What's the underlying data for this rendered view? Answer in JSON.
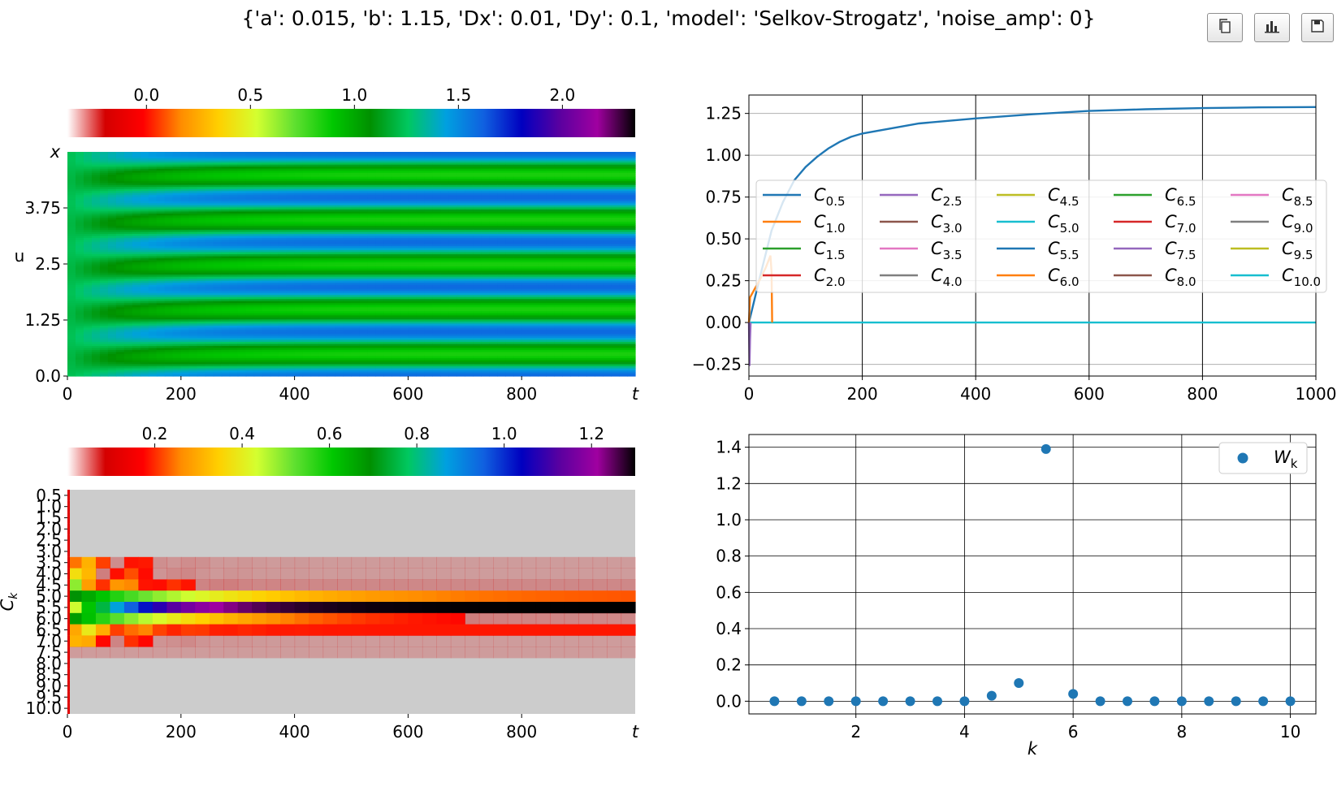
{
  "title": "{'a': 0.015, 'b': 1.15, 'Dx': 0.01, 'Dy': 0.1, 'model': 'Selkov-Strogatz', 'noise_amp': 0}",
  "toolbar": {
    "buttons": [
      {
        "icon": "copy-icon"
      },
      {
        "icon": "bar-chart-icon"
      },
      {
        "icon": "save-icon"
      }
    ]
  },
  "colormap_stops": [
    "#ffffff",
    "#d40000",
    "#ff0000",
    "#ff8c00",
    "#ffd000",
    "#d4ff30",
    "#60e030",
    "#00c800",
    "#009000",
    "#00c860",
    "#00a0e0",
    "#1060e0",
    "#0000c0",
    "#5a00a0",
    "#a000a0",
    "#000000"
  ],
  "chart_data": [
    {
      "type": "heatmap",
      "id": "u-field",
      "xlabel": "t",
      "ylabel": "u",
      "ylabel_top": "x",
      "xticks": [
        "0",
        "200",
        "400",
        "600",
        "800"
      ],
      "yticks": [
        "0.0",
        "1.25",
        "2.5",
        "3.75"
      ],
      "xlim": [
        0,
        1000
      ],
      "ylim": [
        0,
        5
      ],
      "colorbar": {
        "ticks": [
          "0.0",
          "0.5",
          "1.0",
          "1.5",
          "2.0"
        ],
        "tick_values": [
          0,
          0.5,
          1,
          1.5,
          2
        ],
        "range": [
          -0.38,
          2.35
        ]
      },
      "stripes": {
        "count": 5,
        "low_value": 1.65,
        "high_value": 0.82,
        "settle_time": 150
      }
    },
    {
      "type": "heatmap",
      "id": "c-spectrum",
      "xlabel": "t",
      "ylabel": "C_k",
      "xticks": [
        "0",
        "200",
        "400",
        "600",
        "800"
      ],
      "yticks": [
        "0.5",
        "1.0",
        "1.5",
        "2.0",
        "2.5",
        "3.0",
        "3.5",
        "4.0",
        "4.5",
        "5.0",
        "5.5",
        "6.0",
        "6.5",
        "7.0",
        "7.5",
        "8.0",
        "8.5",
        "9.0",
        "9.5",
        "10.0"
      ],
      "xlim": [
        0,
        1000
      ],
      "colorbar": {
        "ticks": [
          "0.2",
          "0.4",
          "0.6",
          "0.8",
          "1.0",
          "1.2"
        ],
        "tick_values": [
          0.2,
          0.4,
          0.6,
          0.8,
          1.0,
          1.2
        ],
        "range": [
          0,
          1.3
        ]
      },
      "rows_k": [
        0.5,
        1.0,
        1.5,
        2.0,
        2.5,
        3.0,
        3.5,
        4.0,
        4.5,
        5.0,
        5.5,
        6.0,
        6.5,
        7.0,
        7.5,
        8.0,
        8.5,
        9.0,
        9.5,
        10.0
      ],
      "row_final_values": [
        0.02,
        0,
        0.02,
        0,
        0.02,
        0.02,
        0.03,
        0.03,
        0.06,
        0.12,
        1.3,
        0.05,
        0.09,
        0.03,
        0.03,
        0.01,
        0,
        0,
        0,
        0
      ]
    },
    {
      "type": "line",
      "id": "c-timeseries",
      "xticks": [
        "0",
        "200",
        "400",
        "600",
        "800",
        "1000"
      ],
      "yticks": [
        "−0.25",
        "0.00",
        "0.25",
        "0.50",
        "0.75",
        "1.00",
        "1.25"
      ],
      "xlim": [
        0,
        1000
      ],
      "ylim": [
        -0.32,
        1.36
      ],
      "grid": true,
      "legend_position": "center",
      "legend_columns": 5,
      "series": [
        {
          "name": "C0.5",
          "base": "C",
          "sub": "0.5",
          "color": "#1f77b4"
        },
        {
          "name": "C1.0",
          "base": "C",
          "sub": "1.0",
          "color": "#ff7f0e"
        },
        {
          "name": "C1.5",
          "base": "C",
          "sub": "1.5",
          "color": "#2ca02c"
        },
        {
          "name": "C2.0",
          "base": "C",
          "sub": "2.0",
          "color": "#d62728"
        },
        {
          "name": "C2.5",
          "base": "C",
          "sub": "2.5",
          "color": "#9467bd"
        },
        {
          "name": "C3.0",
          "base": "C",
          "sub": "3.0",
          "color": "#8c564b"
        },
        {
          "name": "C3.5",
          "base": "C",
          "sub": "3.5",
          "color": "#e377c2"
        },
        {
          "name": "C4.0",
          "base": "C",
          "sub": "4.0",
          "color": "#7f7f7f"
        },
        {
          "name": "C4.5",
          "base": "C",
          "sub": "4.5",
          "color": "#bcbd22"
        },
        {
          "name": "C5.0",
          "base": "C",
          "sub": "5.0",
          "color": "#17becf"
        },
        {
          "name": "C5.5",
          "base": "C",
          "sub": "5.5",
          "color": "#1f77b4",
          "x": [
            0,
            20,
            40,
            60,
            80,
            100,
            120,
            140,
            160,
            180,
            200,
            250,
            300,
            400,
            500,
            600,
            700,
            800,
            900,
            1000
          ],
          "y": [
            0,
            0.28,
            0.55,
            0.72,
            0.85,
            0.93,
            0.99,
            1.04,
            1.08,
            1.11,
            1.13,
            1.16,
            1.19,
            1.22,
            1.245,
            1.265,
            1.275,
            1.282,
            1.286,
            1.288
          ]
        },
        {
          "name": "C6.0",
          "base": "C",
          "sub": "6.0",
          "color": "#ff7f0e",
          "x": [
            0,
            2,
            10,
            20,
            30,
            38,
            40,
            41
          ],
          "y": [
            0,
            0.15,
            0.2,
            0.26,
            0.33,
            0.4,
            0.3,
            0.0
          ]
        },
        {
          "name": "C6.5",
          "base": "C",
          "sub": "6.5",
          "color": "#2ca02c"
        },
        {
          "name": "C7.0",
          "base": "C",
          "sub": "7.0",
          "color": "#d62728"
        },
        {
          "name": "C7.5",
          "base": "C",
          "sub": "7.5",
          "color": "#9467bd",
          "x": [
            0,
            1,
            2,
            3
          ],
          "y": [
            0,
            -0.26,
            -0.1,
            0
          ]
        },
        {
          "name": "C8.0",
          "base": "C",
          "sub": "8.0",
          "color": "#8c564b"
        },
        {
          "name": "C8.5",
          "base": "C",
          "sub": "8.5",
          "color": "#e377c2"
        },
        {
          "name": "C9.0",
          "base": "C",
          "sub": "9.0",
          "color": "#7f7f7f"
        },
        {
          "name": "C9.5",
          "base": "C",
          "sub": "9.5",
          "color": "#bcbd22"
        },
        {
          "name": "C10.0",
          "base": "C",
          "sub": "10.0",
          "color": "#17becf"
        }
      ],
      "zero_line_color": "#17becf"
    },
    {
      "type": "scatter",
      "id": "wk",
      "xlabel": "k",
      "xticks": [
        "2",
        "4",
        "6",
        "8",
        "10"
      ],
      "xtick_values": [
        2,
        4,
        6,
        8,
        10
      ],
      "yticks": [
        "0.0",
        "0.2",
        "0.4",
        "0.6",
        "0.8",
        "1.0",
        "1.2",
        "1.4"
      ],
      "ytick_values": [
        0,
        0.2,
        0.4,
        0.6,
        0.8,
        1.0,
        1.2,
        1.4
      ],
      "xlim": [
        0.03,
        10.47
      ],
      "ylim": [
        -0.07,
        1.47
      ],
      "grid": true,
      "legend_position": "top-right",
      "color": "#1f77b4",
      "legend": {
        "base": "W",
        "sub": "k"
      },
      "x": [
        0.5,
        1.0,
        1.5,
        2.0,
        2.5,
        3.0,
        3.5,
        4.0,
        4.5,
        5.0,
        5.5,
        6.0,
        6.5,
        7.0,
        7.5,
        8.0,
        8.5,
        9.0,
        9.5,
        10.0
      ],
      "y": [
        0,
        0,
        0,
        0,
        0,
        0,
        0,
        0,
        0.03,
        0.1,
        1.39,
        0.04,
        0,
        0,
        0,
        0,
        0,
        0,
        0,
        0
      ]
    }
  ]
}
